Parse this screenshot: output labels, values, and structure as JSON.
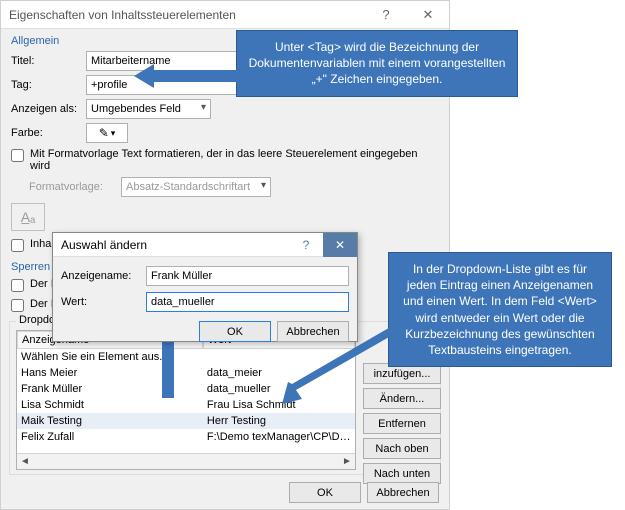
{
  "colors": {
    "accent": "#3d75b8",
    "border": "#b0b0b0",
    "link": "#2a64a8"
  },
  "dialog": {
    "title": "Eigenschaften von Inhaltssteuerelementen",
    "help": "?",
    "close": "✕",
    "section_general": "Allgemein",
    "titel_label": "Titel:",
    "titel_value": "Mitarbeitername",
    "tag_label": "Tag:",
    "tag_value": "+profile",
    "anzeigen_label": "Anzeigen als:",
    "anzeigen_value": "Umgebendes Feld",
    "farbe_label": "Farbe:",
    "chk_format": "Mit Formatvorlage Text formatieren, der in das leere Steuerelement eingegeben wird",
    "formatvorlage_label": "Formatvorlage:",
    "formatvorlage_value": "Absatz-Standardschriftart",
    "btn_A": "A̲ₐ",
    "chk_inhalt": "Inhal",
    "section_lock": "Sperren",
    "chk_der": "Der I",
    "section_dropdown": "Dropdownlisten-Eigenschafte",
    "grid_headers": {
      "c1": "Anzeigename",
      "c2": "Wert"
    },
    "grid_rows": [
      {
        "c1": "Wählen Sie ein Element aus.",
        "c2": ""
      },
      {
        "c1": "Hans Meier",
        "c2": "data_meier"
      },
      {
        "c1": "Frank Müller",
        "c2": "data_mueller"
      },
      {
        "c1": "Lisa Schmidt",
        "c2": "Frau Lisa Schmidt"
      },
      {
        "c1": "Maik Testing",
        "c2": "Herr Testing"
      },
      {
        "c1": "Felix Zufall",
        "c2": "F:\\Demo texManager\\CP\\Doc"
      }
    ],
    "side_buttons": [
      "inzufügen...",
      "Ändern...",
      "Entfernen",
      "Nach oben",
      "Nach unten"
    ],
    "ok": "OK",
    "cancel": "Abbrechen"
  },
  "subdialog": {
    "title": "Auswahl ändern",
    "help": "?",
    "close": "✕",
    "anzeigename_label": "Anzeigename:",
    "anzeigename_value": "Frank Müller",
    "wert_label": "Wert:",
    "wert_value": "data_mueller",
    "ok": "OK",
    "cancel": "Abbrechen"
  },
  "callouts": {
    "top": "Unter <Tag> wird die Bezeichnung der Dokumentenvariablen mit einem vorangestellten „+\" Zeichen eingegeben.",
    "bottom": "In der Dropdown-Liste gibt es für jeden Eintrag einen Anzeigenamen und einen Wert. In dem Feld <Wert> wird entweder ein Wert oder die Kurzbezeichnung des gewünschten Textbausteins eingetragen."
  }
}
